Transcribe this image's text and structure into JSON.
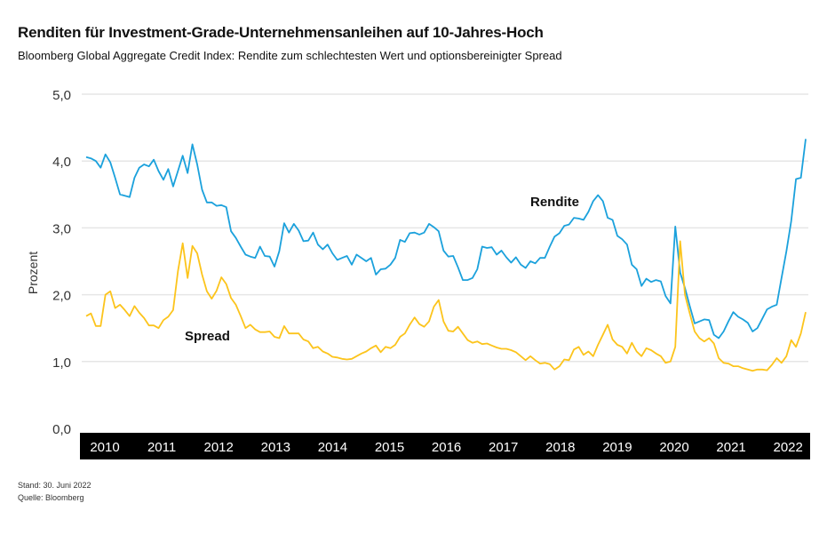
{
  "chart_data": {
    "type": "line",
    "title": "Renditen für Investment-Grade-Unternehmensanleihen auf 10-Jahres-Hoch",
    "subtitle": "Bloomberg Global Aggregate Credit Index: Rendite zum schlechtesten Wert und optionsbereinigter Spread",
    "ylabel": "Prozent",
    "xlabel": "",
    "ylim": [
      0,
      5
    ],
    "yticks": [
      "0,0",
      "1,0",
      "2,0",
      "3,0",
      "4,0",
      "5,0"
    ],
    "xticks": [
      "2010",
      "2011",
      "2012",
      "2013",
      "2014",
      "2015",
      "2016",
      "2017",
      "2018",
      "2019",
      "2020",
      "2021",
      "2022"
    ],
    "x_range": [
      "2010-01",
      "2022-06"
    ],
    "frequency": "monthly",
    "grid": true,
    "series": [
      {
        "name": "Rendite",
        "color": "#1ba1dc",
        "values": [
          4.06,
          4.04,
          4.0,
          3.9,
          4.1,
          3.98,
          3.75,
          3.5,
          3.48,
          3.46,
          3.75,
          3.9,
          3.95,
          3.92,
          4.02,
          3.85,
          3.72,
          3.88,
          3.62,
          3.85,
          4.08,
          3.82,
          4.25,
          3.95,
          3.57,
          3.38,
          3.38,
          3.33,
          3.34,
          3.31,
          2.95,
          2.85,
          2.72,
          2.6,
          2.57,
          2.55,
          2.72,
          2.58,
          2.57,
          2.42,
          2.65,
          3.07,
          2.93,
          3.06,
          2.96,
          2.8,
          2.81,
          2.93,
          2.75,
          2.68,
          2.75,
          2.62,
          2.52,
          2.55,
          2.58,
          2.45,
          2.6,
          2.55,
          2.5,
          2.55,
          2.3,
          2.38,
          2.39,
          2.45,
          2.55,
          2.82,
          2.79,
          2.92,
          2.93,
          2.9,
          2.93,
          3.06,
          3.01,
          2.95,
          2.66,
          2.57,
          2.58,
          2.41,
          2.22,
          2.22,
          2.25,
          2.38,
          2.72,
          2.7,
          2.71,
          2.6,
          2.66,
          2.56,
          2.48,
          2.56,
          2.45,
          2.4,
          2.5,
          2.47,
          2.55,
          2.55,
          2.72,
          2.87,
          2.92,
          3.03,
          3.05,
          3.15,
          3.14,
          3.12,
          3.24,
          3.4,
          3.49,
          3.4,
          3.15,
          3.12,
          2.88,
          2.83,
          2.75,
          2.45,
          2.38,
          2.13,
          2.24,
          2.19,
          2.22,
          2.2,
          1.98,
          1.87,
          3.02,
          2.33,
          2.1,
          1.83,
          1.57,
          1.6,
          1.63,
          1.62,
          1.4,
          1.35,
          1.45,
          1.6,
          1.74,
          1.67,
          1.63,
          1.58,
          1.45,
          1.5,
          1.64,
          1.78,
          1.82,
          1.85,
          2.25,
          2.65,
          3.1,
          3.73,
          3.75,
          4.33
        ]
      },
      {
        "name": "Spread",
        "color": "#fcc41c",
        "values": [
          1.68,
          1.72,
          1.53,
          1.53,
          2.0,
          2.05,
          1.8,
          1.85,
          1.77,
          1.68,
          1.83,
          1.73,
          1.65,
          1.54,
          1.54,
          1.5,
          1.62,
          1.67,
          1.77,
          2.35,
          2.77,
          2.25,
          2.73,
          2.62,
          2.3,
          2.05,
          1.94,
          2.06,
          2.26,
          2.16,
          1.95,
          1.85,
          1.68,
          1.5,
          1.55,
          1.48,
          1.44,
          1.44,
          1.45,
          1.37,
          1.35,
          1.53,
          1.42,
          1.42,
          1.42,
          1.33,
          1.3,
          1.2,
          1.22,
          1.15,
          1.12,
          1.07,
          1.06,
          1.04,
          1.03,
          1.04,
          1.08,
          1.12,
          1.15,
          1.2,
          1.24,
          1.14,
          1.22,
          1.2,
          1.25,
          1.37,
          1.42,
          1.55,
          1.66,
          1.56,
          1.52,
          1.6,
          1.82,
          1.92,
          1.6,
          1.46,
          1.45,
          1.52,
          1.42,
          1.32,
          1.28,
          1.3,
          1.26,
          1.27,
          1.24,
          1.21,
          1.19,
          1.19,
          1.17,
          1.14,
          1.08,
          1.02,
          1.08,
          1.02,
          0.97,
          0.98,
          0.96,
          0.88,
          0.93,
          1.03,
          1.02,
          1.18,
          1.22,
          1.1,
          1.15,
          1.08,
          1.25,
          1.4,
          1.55,
          1.33,
          1.25,
          1.22,
          1.12,
          1.28,
          1.15,
          1.08,
          1.2,
          1.17,
          1.12,
          1.08,
          0.98,
          1.0,
          1.22,
          2.8,
          2.0,
          1.72,
          1.45,
          1.35,
          1.3,
          1.35,
          1.27,
          1.05,
          0.98,
          0.97,
          0.93,
          0.93,
          0.9,
          0.88,
          0.86,
          0.88,
          0.88,
          0.87,
          0.95,
          1.05,
          0.98,
          1.08,
          1.32,
          1.22,
          1.42,
          1.74
        ]
      }
    ]
  },
  "footer": {
    "date": "Stand: 30. Juni 2022",
    "source": "Quelle: Bloomberg"
  }
}
